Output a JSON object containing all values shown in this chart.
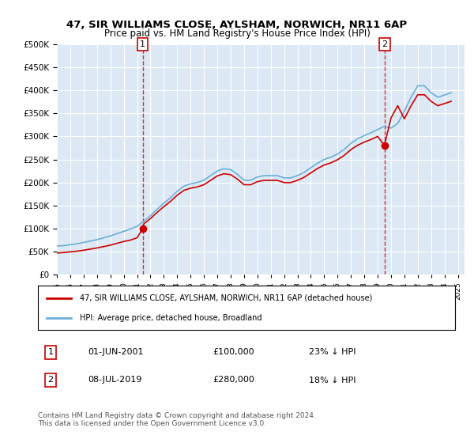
{
  "title": "47, SIR WILLIAMS CLOSE, AYLSHAM, NORWICH, NR11 6AP",
  "subtitle": "Price paid vs. HM Land Registry's House Price Index (HPI)",
  "legend_line1": "47, SIR WILLIAMS CLOSE, AYLSHAM, NORWICH, NR11 6AP (detached house)",
  "legend_line2": "HPI: Average price, detached house, Broadland",
  "annotation1_label": "1",
  "annotation1_date": "01-JUN-2001",
  "annotation1_price": "£100,000",
  "annotation1_hpi": "23% ↓ HPI",
  "annotation2_label": "2",
  "annotation2_date": "08-JUL-2019",
  "annotation2_price": "£280,000",
  "annotation2_hpi": "18% ↓ HPI",
  "footer": "Contains HM Land Registry data © Crown copyright and database right 2024.\nThis data is licensed under the Open Government Licence v3.0.",
  "ylim": [
    0,
    500000
  ],
  "yticks": [
    0,
    50000,
    100000,
    150000,
    200000,
    250000,
    300000,
    350000,
    400000,
    450000,
    500000
  ],
  "xlim_start": 1995.0,
  "xlim_end": 2025.5,
  "background_color": "#dce9f5",
  "plot_bg_color": "#dce9f5",
  "red_color": "#cc0000",
  "blue_color": "#6baed6",
  "transaction1_year": 2001.42,
  "transaction2_year": 2019.52,
  "transaction1_price": 100000,
  "transaction2_price": 280000,
  "hpi_years": [
    1995.0,
    1995.5,
    1996.0,
    1996.5,
    1997.0,
    1997.5,
    1998.0,
    1998.5,
    1999.0,
    1999.5,
    2000.0,
    2000.5,
    2001.0,
    2001.5,
    2002.0,
    2002.5,
    2003.0,
    2003.5,
    2004.0,
    2004.5,
    2005.0,
    2005.5,
    2006.0,
    2006.5,
    2007.0,
    2007.5,
    2008.0,
    2008.5,
    2009.0,
    2009.5,
    2010.0,
    2010.5,
    2011.0,
    2011.5,
    2012.0,
    2012.5,
    2013.0,
    2013.5,
    2014.0,
    2014.5,
    2015.0,
    2015.5,
    2016.0,
    2016.5,
    2017.0,
    2017.5,
    2018.0,
    2018.5,
    2019.0,
    2019.5,
    2020.0,
    2020.5,
    2021.0,
    2021.5,
    2022.0,
    2022.5,
    2023.0,
    2023.5,
    2024.0,
    2024.5
  ],
  "hpi_values": [
    62000,
    63000,
    65000,
    67000,
    70000,
    73000,
    76000,
    80000,
    84000,
    89000,
    94000,
    99000,
    105000,
    116000,
    128000,
    142000,
    155000,
    167000,
    181000,
    192000,
    197000,
    200000,
    205000,
    215000,
    225000,
    230000,
    228000,
    218000,
    205000,
    205000,
    212000,
    215000,
    215000,
    215000,
    210000,
    210000,
    215000,
    222000,
    232000,
    242000,
    250000,
    255000,
    262000,
    272000,
    285000,
    295000,
    302000,
    308000,
    315000,
    322000,
    318000,
    328000,
    355000,
    385000,
    410000,
    410000,
    395000,
    385000,
    390000,
    395000
  ],
  "red_years": [
    1995.0,
    1995.5,
    1996.0,
    1996.5,
    1997.0,
    1997.5,
    1998.0,
    1998.5,
    1999.0,
    1999.5,
    2000.0,
    2000.5,
    2001.0,
    2001.42,
    2001.42,
    2001.5,
    2002.0,
    2002.5,
    2003.0,
    2003.5,
    2004.0,
    2004.5,
    2005.0,
    2005.5,
    2006.0,
    2006.5,
    2007.0,
    2007.5,
    2008.0,
    2008.5,
    2009.0,
    2009.5,
    2010.0,
    2010.5,
    2011.0,
    2011.5,
    2012.0,
    2012.5,
    2013.0,
    2013.5,
    2014.0,
    2014.5,
    2015.0,
    2015.5,
    2016.0,
    2016.5,
    2017.0,
    2017.5,
    2018.0,
    2018.5,
    2019.0,
    2019.52,
    2019.52,
    2019.5,
    2020.0,
    2020.5,
    2021.0,
    2021.5,
    2022.0,
    2022.5,
    2023.0,
    2023.5,
    2024.0,
    2024.5
  ],
  "red_values": [
    47000,
    48000,
    49500,
    51000,
    53000,
    55500,
    58000,
    61000,
    64000,
    68000,
    72000,
    75000,
    80000,
    100000,
    100000,
    110300,
    121700,
    135200,
    147600,
    159000,
    172400,
    182900,
    187600,
    190500,
    195200,
    204700,
    214300,
    219000,
    217100,
    207600,
    195200,
    195200,
    201900,
    204700,
    204700,
    204700,
    199900,
    199900,
    204700,
    211400,
    220900,
    230400,
    238000,
    242700,
    249500,
    258900,
    271500,
    280900,
    287700,
    293400,
    300100,
    280000,
    280000,
    280000,
    340000,
    366700,
    338200,
    366700,
    390500,
    390500,
    376200,
    366700,
    371400,
    376200
  ]
}
